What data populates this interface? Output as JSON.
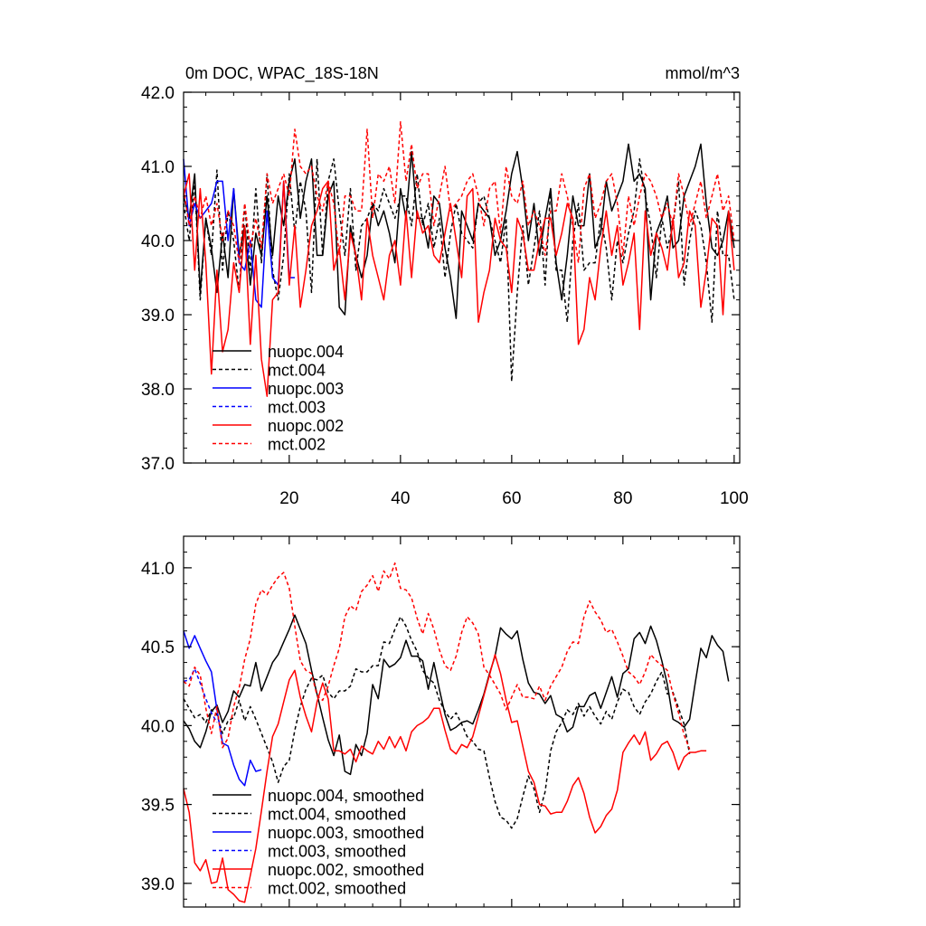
{
  "chart_data": [
    {
      "type": "line",
      "title_left": "0m DOC, WPAC_18S-18N",
      "title_right": "mmol/m^3",
      "xlim": [
        1,
        101
      ],
      "ylim": [
        37.0,
        42.0
      ],
      "xticks": [
        20,
        40,
        60,
        80,
        100
      ],
      "yticks": [
        37.0,
        38.0,
        39.0,
        40.0,
        41.0,
        42.0
      ],
      "ytick_labels": [
        "37.0",
        "38.0",
        "39.0",
        "40.0",
        "41.0",
        "42.0"
      ],
      "xtick_labels": [
        "20",
        "40",
        "60",
        "80",
        "100"
      ],
      "legend": [
        "nuopc.004",
        "mct.004",
        "nuopc.003",
        "mct.003",
        "nuopc.002",
        "mct.002"
      ],
      "series": [
        {
          "name": "nuopc.004",
          "color": "#000000",
          "dash": "solid",
          "x0": 1,
          "values": [
            40.6,
            40.3,
            40.9,
            39.3,
            40.3,
            39.9,
            39.3,
            40.1,
            39.5,
            40.7,
            39.8,
            40.2,
            39.4,
            40.1,
            39.8,
            40.6,
            39.8,
            40.6,
            40.2,
            40.8,
            41.1,
            40.3,
            40.8,
            41.1,
            39.8,
            39.8,
            40.6,
            40.8,
            39.1,
            39.0,
            40.2,
            39.8,
            39.5,
            39.8,
            40.5,
            40.2,
            40.4,
            40.1,
            39.7,
            40.7,
            40.3,
            41.2,
            40.3,
            40.3,
            39.9,
            40.6,
            40.5,
            39.9,
            39.5,
            38.95,
            40.4,
            40.2,
            40.0,
            40.5,
            40.4,
            40.3,
            39.8,
            40.0,
            40.4,
            40.9,
            41.2,
            40.7,
            40.0,
            40.5,
            39.8,
            40.3,
            40.7,
            39.7,
            39.2,
            39.8,
            40.6,
            40.2,
            40.2,
            40.9,
            39.9,
            40.1,
            40.8,
            40.4,
            40.6,
            40.8,
            41.3,
            40.8,
            40.9,
            40.7,
            39.2,
            40.1,
            40.3,
            40.6,
            39.9,
            40.0,
            40.6,
            40.8,
            41.0,
            41.3,
            40.5,
            39.9,
            39.8,
            40.0,
            40.4,
            39.9
          ]
        },
        {
          "name": "mct.004",
          "color": "#000000",
          "dash": "dashed",
          "x0": 1,
          "values": [
            40.5,
            40.0,
            40.8,
            39.2,
            40.3,
            39.8,
            40.95,
            39.6,
            40.4,
            40.0,
            39.3,
            40.5,
            39.6,
            40.7,
            39.7,
            40.9,
            39.6,
            39.2,
            39.8,
            40.9,
            40.1,
            40.8,
            40.4,
            39.3,
            41.1,
            39.8,
            40.8,
            41.1,
            40.4,
            39.8,
            40.7,
            39.6,
            40.2,
            40.3,
            40.5,
            40.4,
            40.7,
            40.5,
            40.3,
            40.6,
            40.6,
            40.2,
            40.9,
            40.2,
            40.5,
            39.9,
            40.3,
            39.5,
            40.1,
            40.5,
            40.1,
            40.0,
            39.9,
            40.5,
            40.6,
            40.3,
            40.0,
            39.7,
            40.3,
            38.1,
            39.3,
            40.2,
            39.4,
            39.9,
            40.4,
            39.4,
            40.7,
            39.6,
            39.6,
            38.9,
            40.0,
            40.5,
            39.6,
            39.7,
            39.7,
            40.3,
            39.9,
            39.2,
            40.0,
            39.7,
            40.1,
            40.4,
            41.1,
            40.6,
            40.2,
            39.5,
            40.3,
            39.9,
            40.2,
            40.8,
            39.4,
            40.0,
            40.4,
            40.2,
            39.7,
            38.9,
            40.4,
            39.8,
            39.8,
            39.2
          ]
        },
        {
          "name": "nuopc.003",
          "color": "#0000ff",
          "dash": "solid",
          "x0": 1,
          "values": [
            41.1,
            40.2,
            40.5,
            40.3,
            40.4,
            40.5,
            40.8,
            40.8,
            40.0,
            40.7,
            39.7,
            39.6,
            40.0,
            39.2,
            39.1,
            40.4,
            39.5,
            39.4,
            40.8,
            39.5,
            39.5
          ]
        },
        {
          "name": "mct.003",
          "color": "#0000ff",
          "dash": "dashed",
          "x0": 1,
          "values": []
        },
        {
          "name": "nuopc.002",
          "color": "#ff0000",
          "dash": "solid",
          "x0": 1,
          "values": [
            40.6,
            40.9,
            39.6,
            40.7,
            39.7,
            38.2,
            39.6,
            38.5,
            38.8,
            39.7,
            39.3,
            40.2,
            38.6,
            39.8,
            38.4,
            37.9,
            39.2,
            39.3,
            40.8,
            39.4,
            40.2,
            39.1,
            39.6,
            40.2,
            40.4,
            40.7,
            40.8,
            39.6,
            39.9,
            39.2,
            40.1,
            39.8,
            39.2,
            40.3,
            39.8,
            39.5,
            39.2,
            39.8,
            40.0,
            39.4,
            40.4,
            39.5,
            40.4,
            40.1,
            40.2,
            39.8,
            39.7,
            40.1,
            40.5,
            40.0,
            39.5,
            40.6,
            40.7,
            38.9,
            39.3,
            39.6,
            40.3,
            40.0,
            39.9,
            39.3,
            40.3,
            40.1,
            39.6,
            39.6,
            40.0,
            40.3,
            40.3,
            39.8,
            40.1,
            40.5,
            40.3,
            38.6,
            38.8,
            39.5,
            39.2,
            39.9,
            40.4,
            39.8,
            40.2,
            39.4,
            39.7,
            40.1,
            38.8,
            40.4,
            39.8,
            40.1,
            39.9,
            39.6,
            40.3,
            39.5,
            39.7,
            40.4,
            40.2,
            39.1,
            39.6,
            40.3,
            40.2,
            39.0,
            40.4,
            39.6
          ]
        },
        {
          "name": "mct.002",
          "color": "#ff0000",
          "dash": "dashed",
          "x0": 1,
          "values": [
            40.7,
            40.2,
            40.6,
            40.3,
            40.6,
            40.2,
            40.5,
            40.0,
            40.4,
            40.2,
            39.7,
            40.5,
            39.9,
            40.3,
            39.9,
            40.9,
            40.5,
            40.7,
            40.9,
            40.6,
            41.5,
            41.0,
            40.9,
            41.0,
            40.6,
            40.4,
            40.8,
            40.5,
            39.8,
            40.6,
            40.6,
            40.4,
            40.4,
            41.5,
            40.3,
            40.9,
            40.8,
            41.0,
            40.5,
            41.6,
            40.8,
            41.3,
            40.7,
            40.9,
            40.9,
            40.2,
            40.6,
            41.0,
            40.4,
            40.5,
            40.6,
            40.8,
            40.9,
            40.6,
            40.2,
            40.7,
            40.8,
            40.1,
            41.0,
            40.6,
            40.5,
            40.8,
            40.2,
            40.4,
            40.2,
            39.8,
            40.4,
            40.4,
            40.9,
            40.6,
            40.2,
            39.7,
            40.7,
            40.9,
            40.3,
            40.5,
            40.8,
            40.9,
            40.5,
            39.8,
            40.6,
            40.2,
            40.6,
            40.9,
            40.8,
            40.6,
            40.3,
            40.5,
            40.2,
            40.9,
            40.6,
            40.2,
            40.5,
            40.8,
            40.3,
            40.6,
            40.9,
            40.4,
            40.6,
            40.0
          ]
        }
      ],
      "line_width": 1.5
    },
    {
      "type": "line",
      "xlim": [
        1,
        101
      ],
      "ylim": [
        38.85,
        41.2
      ],
      "xticks": [
        20,
        40,
        60,
        80,
        100
      ],
      "yticks": [
        39.0,
        39.5,
        40.0,
        40.5,
        41.0
      ],
      "ytick_labels": [
        "39.0",
        "39.5",
        "40.0",
        "40.5",
        "41.0"
      ],
      "xtick_labels": [],
      "legend": [
        "nuopc.004, smoothed",
        "mct.004, smoothed",
        "nuopc.003, smoothed",
        "mct.003, smoothed",
        "nuopc.002, smoothed",
        "mct.002, smoothed"
      ],
      "series": [
        {
          "name": "nuopc.004, smoothed",
          "color": "#000000",
          "dash": "solid",
          "x0": 1,
          "values": [
            40.03,
            39.98,
            39.9,
            39.86,
            39.96,
            40.09,
            40.13,
            40.02,
            40.09,
            40.22,
            40.18,
            40.26,
            40.25,
            40.4,
            40.22,
            40.31,
            40.4,
            40.45,
            40.53,
            40.61,
            40.7,
            40.61,
            40.52,
            40.35,
            40.2,
            40.05,
            39.91,
            39.81,
            39.94,
            39.71,
            39.69,
            39.88,
            39.81,
            39.95,
            40.26,
            40.17,
            40.42,
            40.37,
            40.39,
            40.43,
            40.54,
            40.44,
            40.44,
            40.41,
            40.23,
            40.4,
            40.23,
            40.07,
            39.97,
            39.99,
            40.02,
            40.03,
            40.01,
            40.1,
            40.2,
            40.33,
            40.44,
            40.62,
            40.58,
            40.55,
            40.6,
            40.42,
            40.27,
            40.21,
            40.2,
            40.14,
            40.19,
            40.07,
            40.05,
            39.96,
            39.99,
            40.12,
            40.12,
            40.19,
            40.21,
            40.11,
            40.21,
            40.31,
            40.18,
            40.33,
            40.36,
            40.55,
            40.59,
            40.52,
            40.63,
            40.54,
            40.41,
            40.26,
            40.04,
            40.02,
            39.99,
            40.04,
            40.27,
            40.49,
            40.43,
            40.57,
            40.51,
            40.47,
            40.28
          ]
        },
        {
          "name": "mct.004, smoothed",
          "color": "#000000",
          "dash": "dashed",
          "x0": 1,
          "values": [
            40.17,
            40.11,
            40.05,
            40.07,
            40.02,
            40.1,
            40.07,
            39.95,
            40.03,
            40.05,
            40.16,
            40.03,
            40.12,
            40.04,
            39.95,
            39.86,
            39.77,
            39.64,
            39.74,
            39.78,
            39.97,
            40.12,
            40.23,
            40.3,
            40.29,
            40.32,
            40.21,
            40.17,
            40.22,
            40.22,
            40.25,
            40.36,
            40.34,
            40.34,
            40.38,
            40.38,
            40.53,
            40.52,
            40.61,
            40.69,
            40.63,
            40.54,
            40.47,
            40.35,
            40.3,
            40.27,
            40.16,
            40.09,
            40.04,
            40.08,
            40.01,
            39.93,
            39.9,
            39.85,
            39.84,
            39.67,
            39.52,
            39.42,
            39.4,
            39.35,
            39.41,
            39.55,
            39.68,
            39.6,
            39.45,
            39.58,
            39.84,
            39.96,
            40.02,
            40.1,
            40.07,
            40.14,
            40.06,
            40.12,
            40.06,
            40.01,
            40.09,
            40.04,
            40.15,
            40.23,
            40.21,
            40.12,
            40.07,
            40.15,
            40.2,
            40.28,
            40.34,
            40.2,
            40.21,
            40.11,
            40.01,
            39.82
          ]
        },
        {
          "name": "nuopc.003, smoothed",
          "color": "#0000ff",
          "dash": "solid",
          "x0": 1,
          "values": [
            40.6,
            40.49,
            40.57,
            40.49,
            40.41,
            40.34,
            40.1,
            39.89,
            39.87,
            39.75,
            39.66,
            39.62,
            39.78,
            39.71,
            39.72
          ]
        },
        {
          "name": "mct.003, smoothed",
          "color": "#0000ff",
          "dash": "dashed",
          "x0": 1,
          "values": [
            40.28,
            40.29,
            40.36,
            40.27,
            40.17,
            40.08,
            40.02
          ]
        },
        {
          "name": "nuopc.002, smoothed",
          "color": "#ff0000",
          "dash": "solid",
          "x0": 1,
          "values": [
            39.6,
            39.45,
            39.13,
            39.08,
            39.15,
            39.0,
            39.01,
            39.16,
            38.96,
            38.93,
            38.89,
            38.88,
            39.05,
            39.22,
            39.46,
            39.71,
            39.93,
            40.01,
            40.15,
            40.29,
            40.35,
            40.18,
            40.06,
            39.96,
            40.15,
            40.27,
            40.17,
            39.84,
            39.84,
            39.82,
            39.85,
            39.77,
            39.87,
            39.84,
            39.82,
            39.9,
            39.85,
            39.93,
            39.86,
            39.93,
            39.84,
            39.96,
            40.0,
            40.02,
            40.05,
            40.11,
            40.11,
            39.97,
            39.85,
            39.82,
            39.88,
            39.86,
            39.93,
            40.06,
            40.19,
            40.32,
            40.45,
            40.33,
            40.16,
            40.02,
            40.03,
            39.87,
            39.71,
            39.64,
            39.5,
            39.49,
            39.44,
            39.45,
            39.45,
            39.52,
            39.62,
            39.67,
            39.57,
            39.42,
            39.32,
            39.36,
            39.43,
            39.47,
            39.59,
            39.83,
            39.89,
            39.94,
            39.88,
            39.96,
            39.78,
            39.82,
            39.88,
            39.9,
            39.83,
            39.72,
            39.8,
            39.83,
            39.83,
            39.84,
            39.84
          ]
        },
        {
          "name": "mct.002, smoothed",
          "color": "#ff0000",
          "dash": "dashed",
          "x0": 1,
          "values": [
            40.28,
            40.25,
            40.37,
            40.32,
            40.11,
            39.95,
            40.12,
            39.86,
            39.92,
            40.12,
            40.24,
            40.42,
            40.55,
            40.77,
            40.86,
            40.83,
            40.89,
            40.94,
            40.97,
            40.87,
            40.63,
            40.41,
            40.35,
            40.33,
            40.19,
            40.16,
            40.25,
            40.38,
            40.49,
            40.69,
            40.76,
            40.73,
            40.85,
            40.89,
            40.95,
            40.85,
            40.98,
            40.93,
            41.03,
            40.87,
            40.86,
            40.81,
            40.68,
            40.58,
            40.71,
            40.61,
            40.48,
            40.38,
            40.35,
            40.44,
            40.59,
            40.69,
            40.65,
            40.58,
            40.37,
            40.32,
            40.26,
            40.2,
            40.1,
            40.18,
            40.26,
            40.18,
            40.18,
            40.17,
            40.25,
            40.16,
            40.25,
            40.31,
            40.37,
            40.47,
            40.53,
            40.52,
            40.69,
            40.79,
            40.72,
            40.67,
            40.59,
            40.61,
            40.53,
            40.44,
            40.34,
            40.31,
            40.26,
            40.34,
            40.45,
            40.41,
            40.38,
            40.35,
            40.2,
            40.08,
            39.94,
            39.85
          ]
        }
      ],
      "line_width": 1.5
    }
  ]
}
